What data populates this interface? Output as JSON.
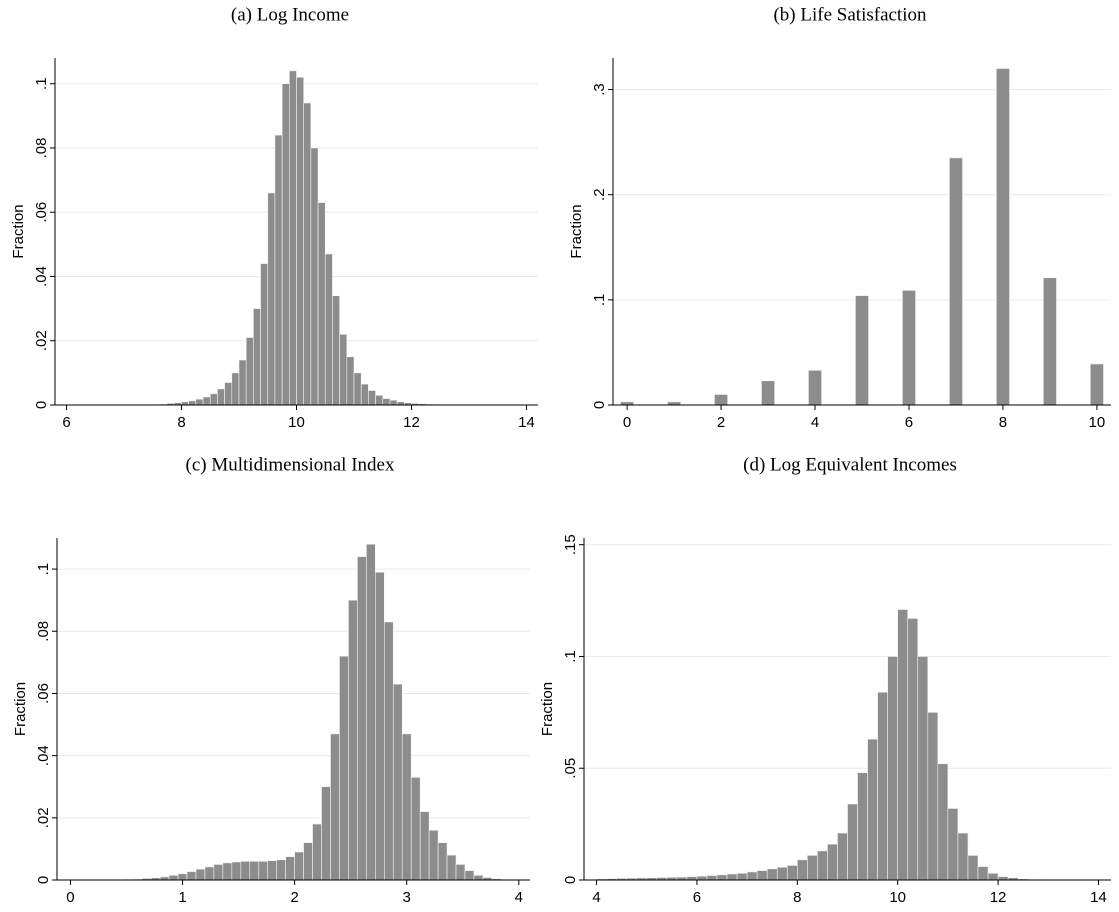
{
  "chart_data": [
    {
      "type": "histogram",
      "title": "(a) Log Income",
      "y_label": "Fraction",
      "color": "#8c8c8c",
      "grid": true,
      "bins": [
        6,
        6.125,
        6.25,
        6.375,
        6.5,
        6.625,
        6.75,
        6.875,
        7,
        7.125,
        7.25,
        7.375,
        7.5,
        7.625,
        7.75,
        7.875,
        8,
        8.125,
        8.25,
        8.375,
        8.5,
        8.625,
        8.75,
        8.875,
        9,
        9.125,
        9.25,
        9.375,
        9.5,
        9.625,
        9.75,
        9.875,
        10,
        10.125,
        10.25,
        10.375,
        10.5,
        10.625,
        10.75,
        10.875,
        11,
        11.125,
        11.25,
        11.375,
        11.5,
        11.625,
        11.75,
        11.875,
        12,
        12.125,
        12.25,
        12.375,
        12.5,
        12.625,
        12.75,
        12.875,
        13,
        13.125,
        13.25,
        13.375,
        13.5,
        13.625,
        13.75,
        13.875,
        14
      ],
      "values": [
        0,
        0,
        0,
        0,
        0,
        0,
        0,
        0,
        0,
        0,
        0,
        0,
        0.0002,
        0.0003,
        0.0005,
        0.0007,
        0.001,
        0.0013,
        0.0018,
        0.0025,
        0.0035,
        0.005,
        0.007,
        0.01,
        0.014,
        0.021,
        0.03,
        0.044,
        0.066,
        0.084,
        0.1,
        0.104,
        0.102,
        0.094,
        0.08,
        0.063,
        0.047,
        0.034,
        0.022,
        0.015,
        0.01,
        0.0065,
        0.0045,
        0.003,
        0.002,
        0.0015,
        0.001,
        0.0007,
        0.0005,
        0.0004,
        0.0003,
        0.0002,
        0.0001,
        0,
        0,
        0,
        0,
        0,
        0,
        0,
        0,
        0,
        0,
        0
      ],
      "xlim": [
        5.8,
        14.2
      ],
      "xticks": [
        6,
        8,
        10,
        12,
        14
      ],
      "ylim": [
        0,
        0.108
      ],
      "yticks": [
        0,
        {
          "value": 0.02,
          "label": ".02"
        },
        {
          "value": 0.04,
          "label": ".04"
        },
        {
          "value": 0.06,
          "label": ".06"
        },
        {
          "value": 0.08,
          "label": ".08"
        },
        {
          "value": 0.1,
          "label": ".1"
        }
      ]
    },
    {
      "type": "bar",
      "title": "(b) Life Satisfaction",
      "y_label": "Fraction",
      "color": "#8c8c8c",
      "grid": true,
      "x": [
        0,
        1,
        2,
        3,
        4,
        5,
        6,
        7,
        8,
        9,
        10
      ],
      "values": [
        0.003,
        0.003,
        0.01,
        0.023,
        0.033,
        0.104,
        0.109,
        0.235,
        0.32,
        0.121,
        0.039
      ],
      "xlim": [
        -0.3,
        10.3
      ],
      "xticks": [
        0,
        2,
        4,
        6,
        8,
        10
      ],
      "ylim": [
        0,
        0.33
      ],
      "yticks": [
        0,
        {
          "value": 0.1,
          "label": ".1"
        },
        {
          "value": 0.2,
          "label": ".2"
        },
        {
          "value": 0.3,
          "label": ".3"
        }
      ]
    },
    {
      "type": "histogram",
      "title": "(c) Multidimensional Index",
      "y_label": "Fraction",
      "color": "#8c8c8c",
      "grid": true,
      "bins": [
        0,
        0.08,
        0.16,
        0.24,
        0.32,
        0.4,
        0.48,
        0.56,
        0.64,
        0.72,
        0.8,
        0.88,
        0.96,
        1.04,
        1.12,
        1.2,
        1.28,
        1.36,
        1.44,
        1.52,
        1.6,
        1.68,
        1.76,
        1.84,
        1.92,
        2,
        2.08,
        2.16,
        2.24,
        2.32,
        2.4,
        2.48,
        2.56,
        2.64,
        2.72,
        2.8,
        2.88,
        2.96,
        3.04,
        3.12,
        3.2,
        3.28,
        3.36,
        3.44,
        3.52,
        3.6,
        3.68,
        3.76,
        3.84,
        3.92,
        4
      ],
      "values": [
        0,
        0,
        0,
        0,
        0,
        0,
        0.0002,
        0.0003,
        0.0005,
        0.0007,
        0.001,
        0.0015,
        0.002,
        0.0027,
        0.0035,
        0.0042,
        0.005,
        0.0055,
        0.0058,
        0.006,
        0.006,
        0.006,
        0.0062,
        0.0065,
        0.0075,
        0.009,
        0.012,
        0.018,
        0.03,
        0.047,
        0.072,
        0.09,
        0.104,
        0.108,
        0.099,
        0.083,
        0.063,
        0.047,
        0.033,
        0.022,
        0.016,
        0.012,
        0.008,
        0.005,
        0.003,
        0.0015,
        0.0008,
        0.0004,
        0.0002,
        0.0001
      ],
      "xlim": [
        -0.12,
        4.1
      ],
      "xticks": [
        0,
        1,
        2,
        3,
        4
      ],
      "ylim": [
        0,
        0.11
      ],
      "yticks": [
        0,
        {
          "value": 0.02,
          "label": ".02"
        },
        {
          "value": 0.04,
          "label": ".04"
        },
        {
          "value": 0.06,
          "label": ".06"
        },
        {
          "value": 0.08,
          "label": ".08"
        },
        {
          "value": 0.1,
          "label": ".1"
        }
      ]
    },
    {
      "type": "histogram",
      "title": "(d) Log Equivalent Incomes",
      "y_label": "Fraction",
      "color": "#8c8c8c",
      "grid": true,
      "bins": [
        4,
        4.2,
        4.4,
        4.6,
        4.8,
        5,
        5.2,
        5.4,
        5.6,
        5.8,
        6,
        6.2,
        6.4,
        6.6,
        6.8,
        7,
        7.2,
        7.4,
        7.6,
        7.8,
        8,
        8.2,
        8.4,
        8.6,
        8.8,
        9,
        9.2,
        9.4,
        9.6,
        9.8,
        10,
        10.2,
        10.4,
        10.6,
        10.8,
        11,
        11.2,
        11.4,
        11.6,
        11.8,
        12,
        12.2,
        12.4,
        12.6,
        12.8,
        13,
        13.2,
        13.4,
        13.6,
        13.8,
        14
      ],
      "values": [
        0.0005,
        0.0006,
        0.0007,
        0.0008,
        0.0009,
        0.001,
        0.0011,
        0.0012,
        0.0013,
        0.0015,
        0.0017,
        0.002,
        0.0023,
        0.0027,
        0.003,
        0.0036,
        0.0042,
        0.005,
        0.0057,
        0.0065,
        0.009,
        0.011,
        0.013,
        0.016,
        0.021,
        0.034,
        0.048,
        0.063,
        0.084,
        0.1,
        0.121,
        0.117,
        0.1,
        0.075,
        0.052,
        0.032,
        0.021,
        0.011,
        0.006,
        0.003,
        0.0015,
        0.001,
        0.0005,
        0.0003,
        0.0002,
        0.0001,
        0,
        0,
        0,
        0
      ],
      "xlim": [
        3.75,
        14.25
      ],
      "xticks": [
        4,
        6,
        8,
        10,
        12,
        14
      ],
      "ylim": [
        0,
        0.153
      ],
      "yticks": [
        0,
        {
          "value": 0.05,
          "label": ".05"
        },
        {
          "value": 0.1,
          "label": ".1"
        },
        {
          "value": 0.15,
          "label": ".15"
        }
      ]
    }
  ]
}
